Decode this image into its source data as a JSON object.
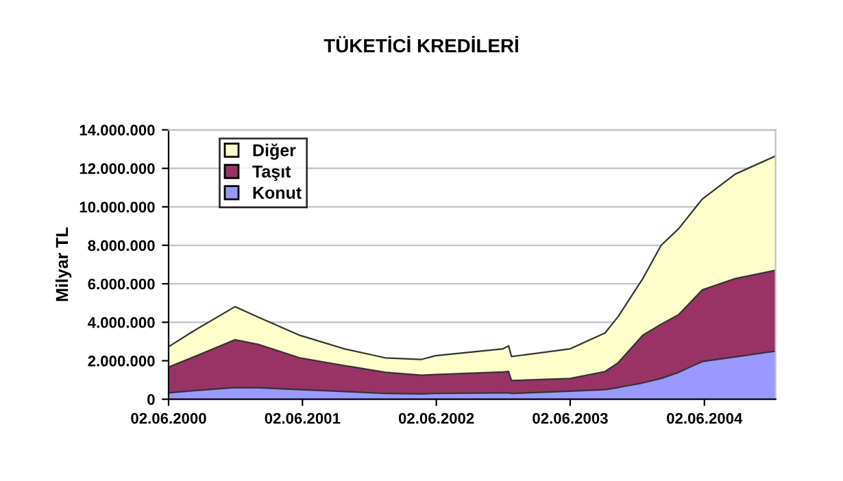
{
  "chart_data": {
    "type": "area",
    "stacked": true,
    "title": "TÜKETİCİ KREDİLERİ",
    "ylabel": "Milyar TL",
    "x": [
      "2000-06-02",
      "2000-08-10",
      "2000-11-30",
      "2001-02-01",
      "2001-05-26",
      "2001-09-24",
      "2002-01-14",
      "2002-04-23",
      "2002-05-31",
      "2002-12-01",
      "2002-12-16",
      "2002-12-24",
      "2003-06-02",
      "2003-09-05",
      "2003-10-11",
      "2003-12-17",
      "2004-02-05",
      "2004-03-24",
      "2004-05-27",
      "2004-08-25",
      "2004-12-13"
    ],
    "series": [
      {
        "name": "Konut",
        "color": "#9999ff",
        "values": [
          330000,
          450000,
          610000,
          600000,
          500000,
          400000,
          300000,
          280000,
          300000,
          330000,
          330000,
          300000,
          420000,
          500000,
          610000,
          850000,
          1080000,
          1400000,
          1960000,
          2200000,
          2500000
        ]
      },
      {
        "name": "Taşıt",
        "color": "#993366",
        "values": [
          1340000,
          1750000,
          2480000,
          2250000,
          1650000,
          1350000,
          1100000,
          970000,
          980000,
          1090000,
          1110000,
          670000,
          660000,
          940000,
          1290000,
          2480000,
          2820000,
          3000000,
          3720000,
          4070000,
          4200000
        ]
      },
      {
        "name": "Diğer",
        "color": "#ffffcc",
        "values": [
          1060000,
          1360000,
          1720000,
          1420000,
          1170000,
          870000,
          750000,
          820000,
          980000,
          1200000,
          1340000,
          1250000,
          1540000,
          2000000,
          2400000,
          2940000,
          4100000,
          4470000,
          4720000,
          5430000,
          5940000
        ]
      }
    ],
    "xlim": [
      "2000-06-02",
      "2004-12-13"
    ],
    "xticks": [
      {
        "value": "2000-06-02",
        "label": "02.06.2000"
      },
      {
        "value": "2001-06-02",
        "label": "02.06.2001"
      },
      {
        "value": "2002-06-02",
        "label": "02.06.2002"
      },
      {
        "value": "2003-06-02",
        "label": "02.06.2003"
      },
      {
        "value": "2004-06-02",
        "label": "02.06.2004"
      }
    ],
    "ylim": [
      0,
      14000000
    ],
    "yticks": [
      {
        "value": 0,
        "label": "0"
      },
      {
        "value": 2000000,
        "label": "2.000.000"
      },
      {
        "value": 4000000,
        "label": "4.000.000"
      },
      {
        "value": 6000000,
        "label": "6.000.000"
      },
      {
        "value": 8000000,
        "label": "8.000.000"
      },
      {
        "value": 10000000,
        "label": "10.000.000"
      },
      {
        "value": 12000000,
        "label": "12.000.000"
      },
      {
        "value": 14000000,
        "label": "14.000.000"
      }
    ],
    "grid": "y",
    "legend": "top left"
  }
}
